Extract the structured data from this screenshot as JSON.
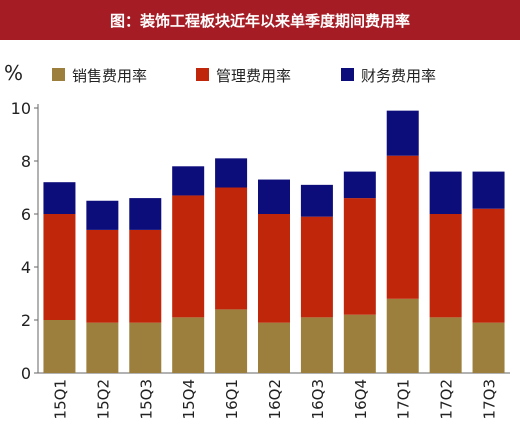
{
  "title": "图：装饰工程板块近年以来单季度期间费用率",
  "chart_data": {
    "type": "bar",
    "stacked": true,
    "ylabel": "%",
    "ylim": [
      0,
      10
    ],
    "yticks": [
      "0",
      "2",
      "4",
      "6",
      "8",
      "10"
    ],
    "legend_position": "top",
    "categories": [
      "15Q1",
      "15Q2",
      "15Q3",
      "15Q4",
      "16Q1",
      "16Q2",
      "16Q3",
      "16Q4",
      "17Q1",
      "17Q2",
      "17Q3"
    ],
    "series": [
      {
        "name": "销售费用率",
        "color": "#9c7f3c",
        "values": [
          2.0,
          1.9,
          1.9,
          2.1,
          2.4,
          1.9,
          2.1,
          2.2,
          2.8,
          2.1,
          1.9
        ]
      },
      {
        "name": "管理费用率",
        "color": "#c0260a",
        "values": [
          4.0,
          3.5,
          3.5,
          4.6,
          4.6,
          4.1,
          3.8,
          4.4,
          5.4,
          3.9,
          4.3
        ]
      },
      {
        "name": "财务费用率",
        "color": "#0c0c7a",
        "values": [
          1.2,
          1.1,
          1.2,
          1.1,
          1.1,
          1.3,
          1.2,
          1.0,
          1.7,
          1.6,
          1.4
        ]
      }
    ]
  }
}
